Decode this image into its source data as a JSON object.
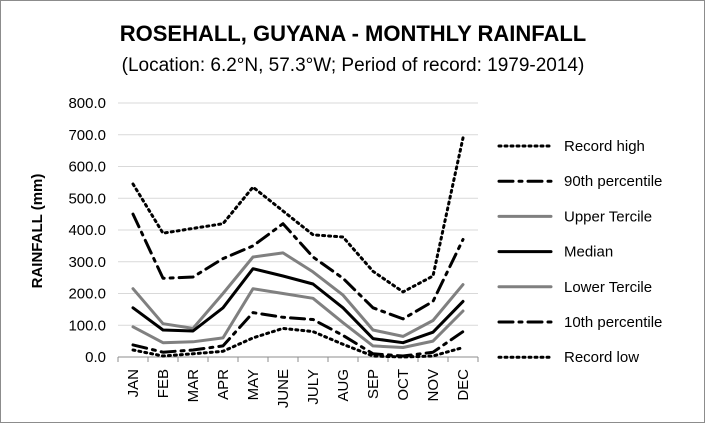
{
  "chart_data": {
    "type": "line",
    "title": "ROSEHALL, GUYANA - MONTHLY RAINFALL",
    "subtitle": "(Location: 6.2°N, 57.3°W; Period of record: 1979-2014)",
    "xlabel": "",
    "ylabel": "RAINFALL (mm)",
    "ylim": [
      0,
      800
    ],
    "yticks": [
      "0.0",
      "100.0",
      "200.0",
      "300.0",
      "400.0",
      "500.0",
      "600.0",
      "700.0",
      "800.0"
    ],
    "categories": [
      "JAN",
      "FEB",
      "MAR",
      "APR",
      "MAY",
      "JUNE",
      "JULY",
      "AUG",
      "SEP",
      "OCT",
      "NOV",
      "DEC"
    ],
    "grid": true,
    "legend_position": "right",
    "series": [
      {
        "name": "Record high",
        "style": "dotted",
        "color": "#000000",
        "width": 3,
        "values": [
          545,
          390,
          405,
          420,
          535,
          460,
          385,
          378,
          270,
          205,
          255,
          690
        ]
      },
      {
        "name": "90th percentile",
        "style": "dashdot",
        "color": "#000000",
        "width": 3,
        "values": [
          450,
          248,
          252,
          310,
          350,
          420,
          315,
          248,
          155,
          120,
          175,
          370
        ]
      },
      {
        "name": "Upper Tercile",
        "style": "solid",
        "color": "#808080",
        "width": 3,
        "values": [
          215,
          105,
          90,
          200,
          315,
          328,
          268,
          195,
          85,
          65,
          115,
          228
        ]
      },
      {
        "name": "Median",
        "style": "solid",
        "color": "#000000",
        "width": 3,
        "values": [
          155,
          85,
          82,
          155,
          278,
          255,
          230,
          155,
          58,
          45,
          78,
          175
        ]
      },
      {
        "name": "Lower Tercile",
        "style": "solid",
        "color": "#808080",
        "width": 3,
        "values": [
          95,
          45,
          48,
          60,
          215,
          200,
          185,
          108,
          35,
          30,
          50,
          145
        ]
      },
      {
        "name": "10th percentile",
        "style": "dashdot",
        "color": "#000000",
        "width": 3,
        "values": [
          38,
          15,
          22,
          35,
          140,
          125,
          118,
          68,
          10,
          3,
          15,
          80
        ]
      },
      {
        "name": "Record low",
        "style": "dotted",
        "color": "#000000",
        "width": 3,
        "values": [
          22,
          3,
          10,
          18,
          60,
          90,
          80,
          40,
          3,
          0,
          3,
          30
        ]
      }
    ]
  }
}
